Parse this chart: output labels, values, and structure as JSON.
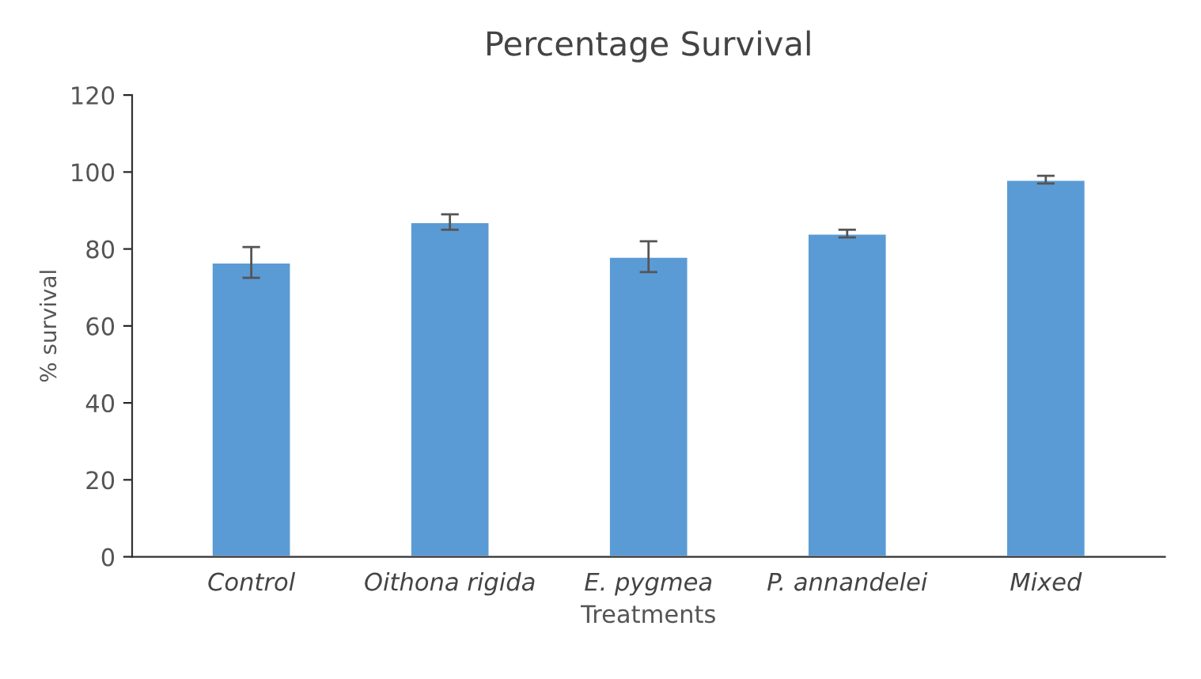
{
  "chart_data": {
    "type": "bar",
    "title": "Percentage Survival",
    "xlabel": "Treatments",
    "ylabel": "% survival",
    "categories": [
      "Control",
      "Oithona rigida",
      "E. pygmea",
      "P. annandelei",
      "Mixed"
    ],
    "values": [
      76.5,
      87,
      78,
      84,
      98
    ],
    "errors": [
      4,
      2,
      4,
      1,
      1
    ],
    "color": "#5b9bd5",
    "ylim": [
      0,
      120
    ],
    "yticks": [
      0,
      20,
      40,
      60,
      80,
      100,
      120
    ],
    "grid": false,
    "legend": false
  }
}
